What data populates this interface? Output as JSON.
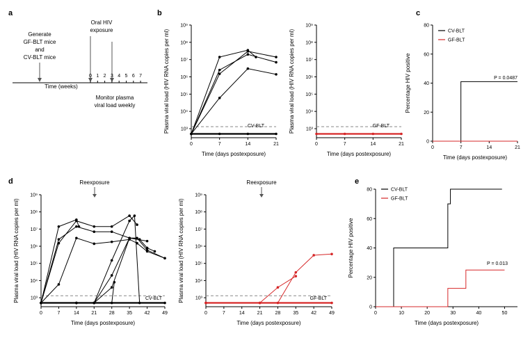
{
  "panel_letters": [
    "a",
    "b",
    "c",
    "d",
    "e"
  ],
  "timeline": {
    "left_label": [
      "Generate",
      "GF-BLT mice",
      "and",
      "CV-BLT mice"
    ],
    "top_label": [
      "Oral HIV",
      "exposure"
    ],
    "axis_label": "Time (weeks)",
    "ticks": [
      "0",
      "1",
      "2",
      "3",
      "4",
      "5",
      "6",
      "7"
    ],
    "bottom_label": [
      "Monitor plasma",
      "viral load weekly"
    ]
  },
  "chart_data": [
    {
      "id": "b_left",
      "type": "line",
      "xlabel": "Time (days postexposure)",
      "ylabel": "Plasma viral load (HIV RNA copies per ml)",
      "x_ticks": [
        "0",
        "7",
        "14",
        "21"
      ],
      "y_ticks": [
        "10³",
        "10⁴",
        "10⁵",
        "10⁶",
        "10⁷",
        "10⁸",
        "10⁹"
      ],
      "annotation": "CV-BLT",
      "color": "#000000",
      "series": [
        {
          "x": [
            0,
            7,
            14,
            16
          ],
          "y": [
            500,
            14000000,
            35000000,
            14000000
          ]
        },
        {
          "x": [
            0,
            7,
            14,
            21
          ],
          "y": [
            500,
            1500000,
            30000000,
            14000000
          ]
        },
        {
          "x": [
            0,
            7,
            14,
            21
          ],
          "y": [
            500,
            2500000,
            20000000,
            7000000
          ]
        },
        {
          "x": [
            0,
            7,
            14,
            21
          ],
          "y": [
            500,
            60000,
            3000000,
            1400000
          ]
        },
        {
          "x": [
            0,
            7,
            14,
            21
          ],
          "y": [
            500,
            500,
            500,
            500
          ]
        }
      ]
    },
    {
      "id": "b_right",
      "type": "line",
      "xlabel": "Time (days postexposure)",
      "ylabel": "Plasma viral load (HIV RNA copies per ml)",
      "x_ticks": [
        "0",
        "7",
        "14",
        "21"
      ],
      "y_ticks": [
        "10³",
        "10⁴",
        "10⁵",
        "10⁶",
        "10⁷",
        "10⁸",
        "10⁹"
      ],
      "annotation": "GF-BLT",
      "color": "#d62728",
      "series": [
        {
          "x": [
            0,
            7,
            14,
            21
          ],
          "y": [
            500,
            500,
            500,
            500
          ]
        }
      ]
    },
    {
      "id": "c",
      "type": "line",
      "xlabel": "Time (days postexposure)",
      "ylabel": "Percentage HIV positive",
      "x_ticks": [
        "0",
        "7",
        "14",
        "21"
      ],
      "y_ticks": [
        "0",
        "20",
        "40",
        "60",
        "80"
      ],
      "annotation": "P = 0.0487",
      "series": [
        {
          "name": "CV-BLT",
          "color": "#000000",
          "x": [
            0,
            7,
            7,
            21
          ],
          "y": [
            0,
            0,
            41,
            41
          ]
        },
        {
          "name": "GF-BLT",
          "color": "#d62728",
          "x": [
            0,
            21
          ],
          "y": [
            0,
            0
          ]
        }
      ]
    },
    {
      "id": "d_left",
      "type": "line",
      "xlabel": "Time (days postexposure)",
      "ylabel": "Plasma viral load (HIV RNA copies per ml)",
      "x_ticks": [
        "0",
        "7",
        "14",
        "21",
        "28",
        "35",
        "42",
        "49"
      ],
      "y_ticks": [
        "10³",
        "10⁴",
        "10⁵",
        "10⁶",
        "10⁷",
        "10⁸",
        "10⁹"
      ],
      "annotation": "CV-BLT",
      "reexposure": "Reexposure",
      "color": "#000000",
      "series": [
        {
          "x": [
            0,
            7,
            14,
            15
          ],
          "y": [
            500,
            14000000,
            35000000,
            14000000
          ]
        },
        {
          "x": [
            0,
            7,
            14,
            21,
            28,
            35,
            38
          ],
          "y": [
            500,
            1500000,
            30000000,
            14000000,
            14000000,
            60000000,
            18000000
          ]
        },
        {
          "x": [
            0,
            7,
            14,
            21,
            28,
            35,
            38,
            42,
            49
          ],
          "y": [
            500,
            2500000,
            14000000,
            7000000,
            7000000,
            3000000,
            3000000,
            600000,
            200000
          ]
        },
        {
          "x": [
            0,
            7,
            14,
            21,
            28,
            35,
            38,
            42,
            49
          ],
          "y": [
            500,
            6000,
            3000000,
            1400000,
            1800000,
            2500000,
            1500000,
            500000,
            200000
          ]
        },
        {
          "x": [
            0,
            14,
            21,
            28,
            35,
            37,
            39
          ],
          "y": [
            500,
            500,
            500,
            150000,
            30000000,
            60000000,
            500
          ]
        },
        {
          "x": [
            0,
            14,
            21,
            28,
            35,
            39,
            42,
            45
          ],
          "y": [
            500,
            500,
            500,
            20000,
            3000000,
            2500000,
            800000,
            500000
          ]
        },
        {
          "x": [
            0,
            14,
            21,
            28,
            35,
            42
          ],
          "y": [
            500,
            500,
            500,
            4000,
            3000000,
            2000000
          ]
        },
        {
          "x": [
            0,
            21,
            28,
            29
          ],
          "y": [
            500,
            500,
            500,
            8000
          ]
        },
        {
          "x": [
            0,
            49
          ],
          "y": [
            500,
            500
          ]
        }
      ]
    },
    {
      "id": "d_right",
      "type": "line",
      "xlabel": "Time (days postexposure)",
      "ylabel": "Plasma viral load (HIV RNA copies per ml)",
      "x_ticks": [
        "0",
        "7",
        "14",
        "21",
        "28",
        "35",
        "42",
        "49"
      ],
      "y_ticks": [
        "10³",
        "10⁴",
        "10⁵",
        "10⁶",
        "10⁷",
        "10⁸",
        "10⁹"
      ],
      "annotation": "GF-BLT",
      "reexposure": "Reexposure",
      "color": "#d62728",
      "series": [
        {
          "x": [
            0,
            21,
            28,
            35,
            42,
            49
          ],
          "y": [
            500,
            500,
            500,
            30000,
            300000,
            350000
          ]
        },
        {
          "x": [
            0,
            21,
            28,
            35
          ],
          "y": [
            500,
            500,
            4000,
            18000
          ]
        },
        {
          "x": [
            0,
            49
          ],
          "y": [
            500,
            500
          ]
        }
      ]
    },
    {
      "id": "e",
      "type": "line",
      "xlabel": "Time (days postexposure)",
      "ylabel": "Percentage HIV positive",
      "x_ticks": [
        "0",
        "10",
        "20",
        "30",
        "40",
        "50"
      ],
      "y_ticks": [
        "0",
        "20",
        "40",
        "60",
        "80"
      ],
      "annotation": "P = 0.013",
      "series": [
        {
          "name": "CV-BLT",
          "color": "#000000",
          "x": [
            0,
            7,
            7,
            28,
            28,
            29,
            29,
            49
          ],
          "y": [
            0,
            0,
            40,
            40,
            70,
            70,
            80,
            80
          ]
        },
        {
          "name": "GF-BLT",
          "color": "#d62728",
          "x": [
            0,
            28,
            28,
            35,
            35,
            50
          ],
          "y": [
            0,
            0,
            12.5,
            12.5,
            25,
            25
          ]
        }
      ]
    }
  ]
}
